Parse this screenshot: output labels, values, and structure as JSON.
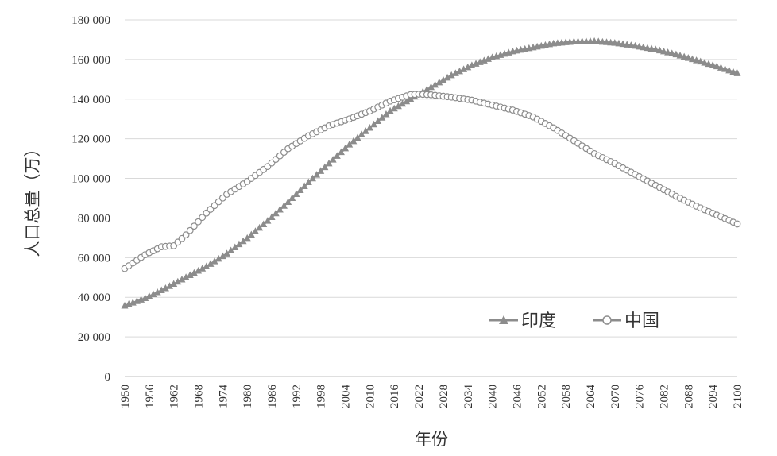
{
  "chart_data": {
    "type": "line",
    "xlabel": "年份",
    "ylabel": "人口总量（万）",
    "xlim": [
      1950,
      2100
    ],
    "ylim": [
      0,
      180000
    ],
    "grid": "horizontal",
    "legend_position": "bottom-right",
    "y_ticks": [
      0,
      20000,
      40000,
      60000,
      80000,
      100000,
      120000,
      140000,
      160000,
      180000
    ],
    "y_tick_labels": [
      "0",
      "20 000",
      "40 000",
      "60 000",
      "80 000",
      "100 000",
      "120 000",
      "140 000",
      "160 000",
      "180 000"
    ],
    "x_tick_labels": [
      "1950",
      "1956",
      "1962",
      "1968",
      "1974",
      "1980",
      "1986",
      "1992",
      "1998",
      "2004",
      "2010",
      "2016",
      "2022",
      "2028",
      "2034",
      "2040",
      "2046",
      "2052",
      "2058",
      "2064",
      "2070",
      "2076",
      "2082",
      "2088",
      "2094",
      "2100"
    ],
    "series": [
      {
        "name": "印度",
        "marker": "triangle",
        "color": "#8c8c8c",
        "points": [
          [
            1950,
            35700
          ],
          [
            1955,
            39500
          ],
          [
            1960,
            44500
          ],
          [
            1965,
            50000
          ],
          [
            1970,
            55500
          ],
          [
            1975,
            62000
          ],
          [
            1980,
            69800
          ],
          [
            1985,
            78500
          ],
          [
            1990,
            88000
          ],
          [
            1995,
            98000
          ],
          [
            2000,
            107500
          ],
          [
            2005,
            117000
          ],
          [
            2010,
            125500
          ],
          [
            2015,
            134000
          ],
          [
            2020,
            140000
          ],
          [
            2025,
            146000
          ],
          [
            2030,
            152000
          ],
          [
            2035,
            157000
          ],
          [
            2040,
            161000
          ],
          [
            2045,
            164000
          ],
          [
            2050,
            166000
          ],
          [
            2055,
            168000
          ],
          [
            2060,
            169000
          ],
          [
            2065,
            169200
          ],
          [
            2070,
            168300
          ],
          [
            2075,
            166800
          ],
          [
            2080,
            165000
          ],
          [
            2085,
            162500
          ],
          [
            2090,
            159500
          ],
          [
            2095,
            156500
          ],
          [
            2100,
            153000
          ]
        ]
      },
      {
        "name": "中国",
        "marker": "circle",
        "color": "#8c8c8c",
        "points": [
          [
            1950,
            54500
          ],
          [
            1955,
            61500
          ],
          [
            1959,
            65500
          ],
          [
            1962,
            66000
          ],
          [
            1965,
            71500
          ],
          [
            1970,
            82500
          ],
          [
            1975,
            92000
          ],
          [
            1980,
            98500
          ],
          [
            1985,
            106000
          ],
          [
            1990,
            115000
          ],
          [
            1995,
            121500
          ],
          [
            2000,
            126500
          ],
          [
            2005,
            130000
          ],
          [
            2010,
            134000
          ],
          [
            2015,
            139000
          ],
          [
            2020,
            142300
          ],
          [
            2022,
            142500
          ],
          [
            2025,
            142200
          ],
          [
            2030,
            141000
          ],
          [
            2035,
            139500
          ],
          [
            2040,
            137000
          ],
          [
            2045,
            134500
          ],
          [
            2050,
            131000
          ],
          [
            2055,
            125500
          ],
          [
            2060,
            119000
          ],
          [
            2065,
            112500
          ],
          [
            2070,
            107500
          ],
          [
            2075,
            102000
          ],
          [
            2080,
            96500
          ],
          [
            2085,
            91000
          ],
          [
            2090,
            86000
          ],
          [
            2095,
            81500
          ],
          [
            2100,
            77000
          ]
        ]
      }
    ]
  }
}
